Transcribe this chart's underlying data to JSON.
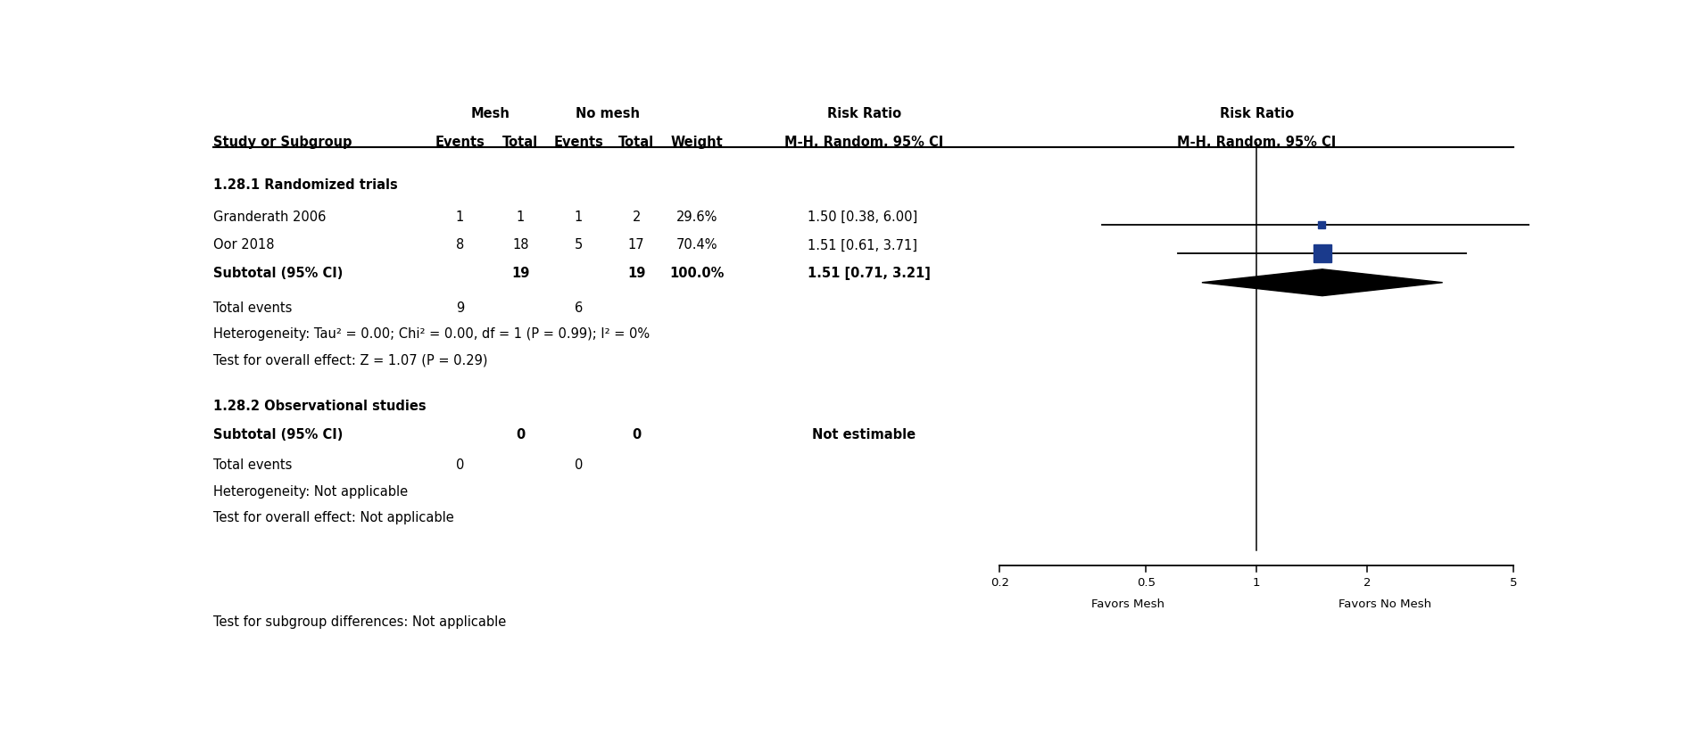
{
  "studies": [
    {
      "name": "Granderath 2006",
      "mesh_events": 1,
      "mesh_total": 1,
      "nomesh_events": 1,
      "nomesh_total": 2,
      "weight": "29.6%",
      "rr": 1.5,
      "ci_low": 0.38,
      "ci_high": 6.0,
      "rr_text": "1.50 [0.38, 6.00]",
      "type": "study",
      "marker_size": 6
    },
    {
      "name": "Oor 2018",
      "mesh_events": 8,
      "mesh_total": 18,
      "nomesh_events": 5,
      "nomesh_total": 17,
      "weight": "70.4%",
      "rr": 1.51,
      "ci_low": 0.61,
      "ci_high": 3.71,
      "rr_text": "1.51 [0.61, 3.71]",
      "type": "study",
      "marker_size": 14
    },
    {
      "name": "Subtotal (95% CI)",
      "mesh_events": null,
      "mesh_total": 19,
      "nomesh_events": null,
      "nomesh_total": 19,
      "weight": "100.0%",
      "rr": 1.51,
      "ci_low": 0.71,
      "ci_high": 3.21,
      "rr_text": "1.51 [0.71, 3.21]",
      "type": "subtotal"
    }
  ],
  "obs_subtotal": {
    "name": "Subtotal (95% CI)",
    "mesh_total": 0,
    "nomesh_total": 0,
    "weight": "",
    "rr_text": "Not estimable",
    "type": "subtotal_na"
  },
  "section1_label": "1.28.1 Randomized trials",
  "section2_label": "1.28.2 Observational studies",
  "total_events_rct_mesh": 9,
  "total_events_rct_nomesh": 6,
  "total_events_obs_mesh": 0,
  "total_events_obs_nomesh": 0,
  "heterogeneity_rct": "Heterogeneity: Tau² = 0.00; Chi² = 0.00, df = 1 (P = 0.99); I² = 0%",
  "overall_effect_rct": "Test for overall effect: Z = 1.07 (P = 0.29)",
  "heterogeneity_obs": "Heterogeneity: Not applicable",
  "overall_effect_obs": "Test for overall effect: Not applicable",
  "subgroup_diff": "Test for subgroup differences: Not applicable",
  "axis_ticks": [
    0.2,
    0.5,
    1,
    2,
    5
  ],
  "axis_tick_labels": [
    "0.2",
    "0.5",
    "1",
    "2",
    "5"
  ],
  "axis_label_left": "Favors Mesh",
  "axis_label_right": "Favors No Mesh",
  "x_min": 0.2,
  "x_max": 5.0,
  "diamond_color": "#000000",
  "square_color": "#1a3a8c",
  "bg_color": "#ffffff",
  "font_size": 10.5
}
